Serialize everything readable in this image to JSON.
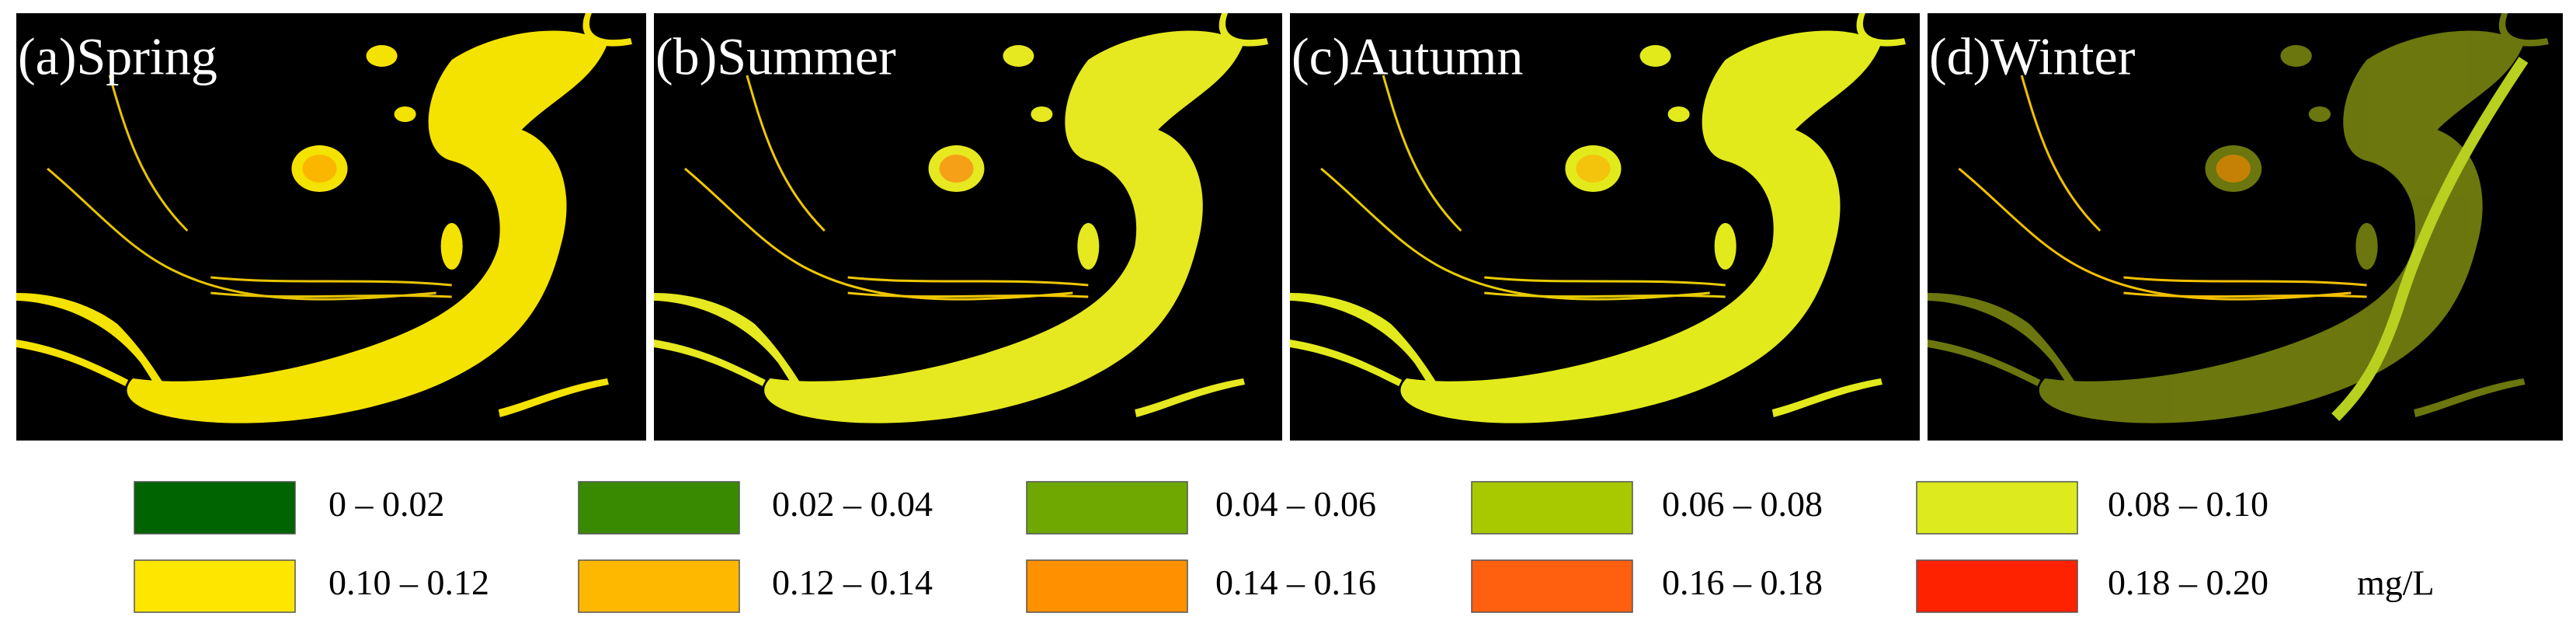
{
  "panels": [
    {
      "label": "(a)Spring"
    },
    {
      "label": "(b)Summer"
    },
    {
      "label": "(c)Autumn"
    },
    {
      "label": "(d)Winter"
    }
  ],
  "legend": {
    "items": [
      {
        "label": "0 – 0.02",
        "color": "#006400"
      },
      {
        "label": "0.02 – 0.04",
        "color": "#3a8a00"
      },
      {
        "label": "0.04 – 0.06",
        "color": "#6fa800"
      },
      {
        "label": "0.06 – 0.08",
        "color": "#a8c800"
      },
      {
        "label": "0.08 – 0.10",
        "color": "#dcea1e"
      },
      {
        "label": "0.10 – 0.12",
        "color": "#ffe600"
      },
      {
        "label": "0.12 – 0.14",
        "color": "#ffb800"
      },
      {
        "label": "0.14 – 0.16",
        "color": "#ff9000"
      },
      {
        "label": "0.16 – 0.18",
        "color": "#ff6010"
      },
      {
        "label": "0.18 – 0.20",
        "color": "#ff2200"
      }
    ],
    "unit": "mg/L"
  }
}
